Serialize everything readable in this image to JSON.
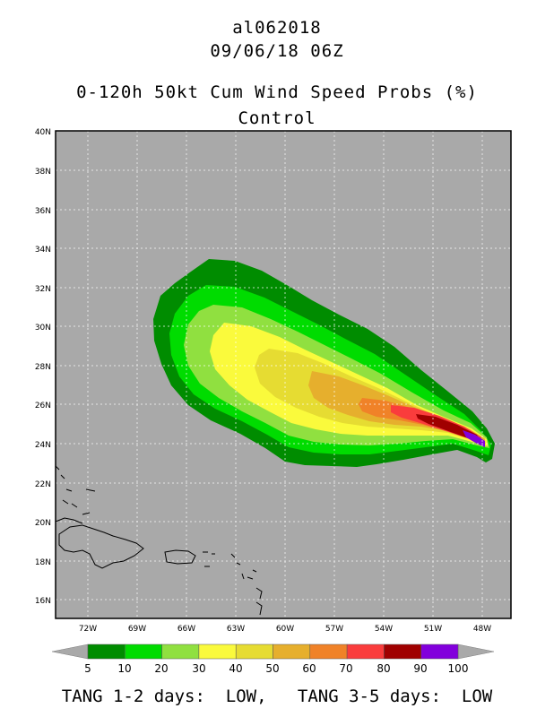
{
  "header": {
    "storm_id": "al062018",
    "datetime": "09/06/18 06Z",
    "product": "0-120h 50kt Cum Wind Speed Probs (%)",
    "member": "Control"
  },
  "map": {
    "lat_labels": [
      "40N",
      "38N",
      "36N",
      "34N",
      "32N",
      "30N",
      "28N",
      "26N",
      "24N",
      "22N",
      "20N",
      "18N",
      "16N"
    ],
    "lon_labels": [
      "72W",
      "69W",
      "66W",
      "63W",
      "60W",
      "57W",
      "54W",
      "51W",
      "48W"
    ],
    "background_color": "#a9a9a9"
  },
  "colorbar": {
    "labels": [
      "5",
      "10",
      "20",
      "30",
      "40",
      "50",
      "60",
      "70",
      "80",
      "90",
      "100"
    ],
    "colors": [
      "#008c00",
      "#00dc00",
      "#90e040",
      "#fafa3c",
      "#e6dc32",
      "#e6af2d",
      "#f08228",
      "#fa3c3c",
      "#a00000",
      "#8200dc"
    ]
  },
  "footer": {
    "text": "TANG 1-2 days:  LOW,   TANG 3-5 days:  LOW"
  }
}
